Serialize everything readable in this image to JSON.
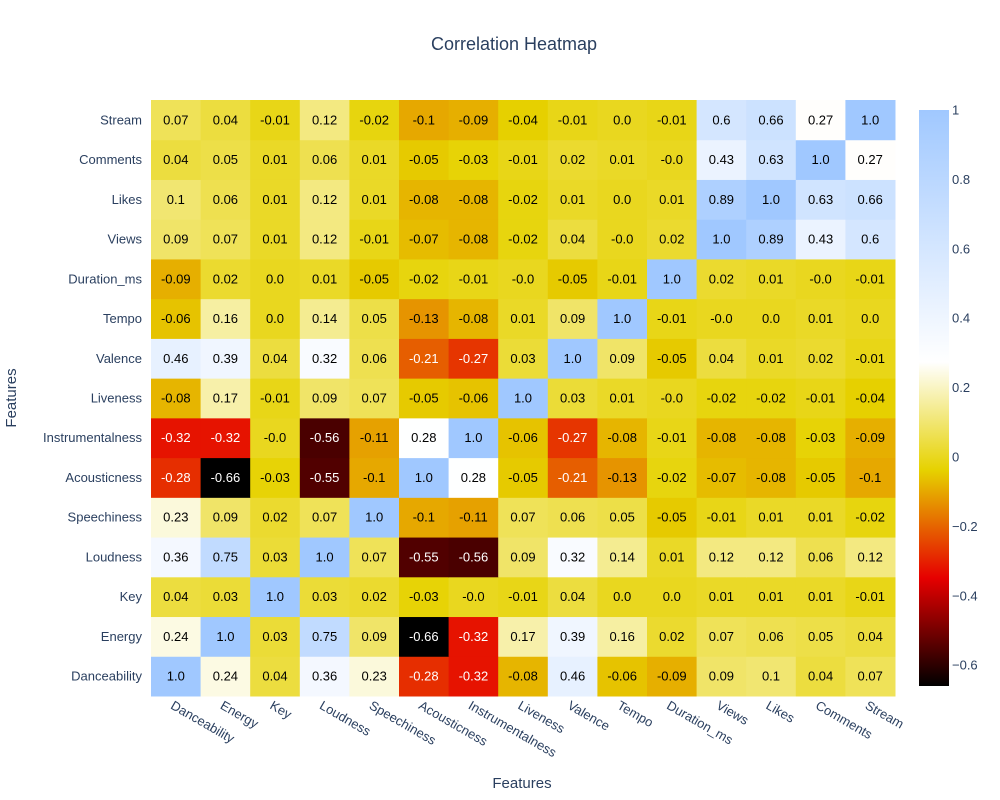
{
  "chart_data": {
    "type": "heatmap",
    "title": "Correlation Heatmap",
    "xlabel": "Features",
    "ylabel": "Features",
    "x_categories": [
      "Danceability",
      "Energy",
      "Key",
      "Loudness",
      "Speechiness",
      "Acousticness",
      "Instrumentalness",
      "Liveness",
      "Valence",
      "Tempo",
      "Duration_ms",
      "Views",
      "Likes",
      "Comments",
      "Stream"
    ],
    "y_categories": [
      "Danceability",
      "Energy",
      "Key",
      "Loudness",
      "Speechiness",
      "Acousticness",
      "Instrumentalness",
      "Liveness",
      "Valence",
      "Tempo",
      "Duration_ms",
      "Views",
      "Likes",
      "Comments",
      "Stream"
    ],
    "z_labels": [
      [
        "1.0",
        "0.24",
        "0.04",
        "0.36",
        "0.23",
        "-0.28",
        "-0.32",
        "-0.08",
        "0.46",
        "-0.06",
        "-0.09",
        "0.09",
        "0.1",
        "0.04",
        "0.07"
      ],
      [
        "0.24",
        "1.0",
        "0.03",
        "0.75",
        "0.09",
        "-0.66",
        "-0.32",
        "0.17",
        "0.39",
        "0.16",
        "0.02",
        "0.07",
        "0.06",
        "0.05",
        "0.04"
      ],
      [
        "0.04",
        "0.03",
        "1.0",
        "0.03",
        "0.02",
        "-0.03",
        "-0.0",
        "-0.01",
        "0.04",
        "0.0",
        "0.0",
        "0.01",
        "0.01",
        "0.01",
        "-0.01"
      ],
      [
        "0.36",
        "0.75",
        "0.03",
        "1.0",
        "0.07",
        "-0.55",
        "-0.56",
        "0.09",
        "0.32",
        "0.14",
        "0.01",
        "0.12",
        "0.12",
        "0.06",
        "0.12"
      ],
      [
        "0.23",
        "0.09",
        "0.02",
        "0.07",
        "1.0",
        "-0.1",
        "-0.11",
        "0.07",
        "0.06",
        "0.05",
        "-0.05",
        "-0.01",
        "0.01",
        "0.01",
        "-0.02"
      ],
      [
        "-0.28",
        "-0.66",
        "-0.03",
        "-0.55",
        "-0.1",
        "1.0",
        "0.28",
        "-0.05",
        "-0.21",
        "-0.13",
        "-0.02",
        "-0.07",
        "-0.08",
        "-0.05",
        "-0.1"
      ],
      [
        "-0.32",
        "-0.32",
        "-0.0",
        "-0.56",
        "-0.11",
        "0.28",
        "1.0",
        "-0.06",
        "-0.27",
        "-0.08",
        "-0.01",
        "-0.08",
        "-0.08",
        "-0.03",
        "-0.09"
      ],
      [
        "-0.08",
        "0.17",
        "-0.01",
        "0.09",
        "0.07",
        "-0.05",
        "-0.06",
        "1.0",
        "0.03",
        "0.01",
        "-0.0",
        "-0.02",
        "-0.02",
        "-0.01",
        "-0.04"
      ],
      [
        "0.46",
        "0.39",
        "0.04",
        "0.32",
        "0.06",
        "-0.21",
        "-0.27",
        "0.03",
        "1.0",
        "0.09",
        "-0.05",
        "0.04",
        "0.01",
        "0.02",
        "-0.01"
      ],
      [
        "-0.06",
        "0.16",
        "0.0",
        "0.14",
        "0.05",
        "-0.13",
        "-0.08",
        "0.01",
        "0.09",
        "1.0",
        "-0.01",
        "-0.0",
        "0.0",
        "0.01",
        "0.0"
      ],
      [
        "-0.09",
        "0.02",
        "0.0",
        "0.01",
        "-0.05",
        "-0.02",
        "-0.01",
        "-0.0",
        "-0.05",
        "-0.01",
        "1.0",
        "0.02",
        "0.01",
        "-0.0",
        "-0.01"
      ],
      [
        "0.09",
        "0.07",
        "0.01",
        "0.12",
        "-0.01",
        "-0.07",
        "-0.08",
        "-0.02",
        "0.04",
        "-0.0",
        "0.02",
        "1.0",
        "0.89",
        "0.43",
        "0.6"
      ],
      [
        "0.1",
        "0.06",
        "0.01",
        "0.12",
        "0.01",
        "-0.08",
        "-0.08",
        "-0.02",
        "0.01",
        "0.0",
        "0.01",
        "0.89",
        "1.0",
        "0.63",
        "0.66"
      ],
      [
        "0.04",
        "0.05",
        "0.01",
        "0.06",
        "0.01",
        "-0.05",
        "-0.03",
        "-0.01",
        "0.02",
        "0.01",
        "-0.0",
        "0.43",
        "0.63",
        "1.0",
        "0.27"
      ],
      [
        "0.07",
        "0.04",
        "-0.01",
        "0.12",
        "-0.02",
        "-0.1",
        "-0.09",
        "-0.04",
        "-0.01",
        "0.0",
        "-0.01",
        "0.6",
        "0.66",
        "0.27",
        "1.0"
      ]
    ],
    "zmin": -0.66,
    "zmax": 1.0,
    "colorscale": [
      [
        0.0,
        "#000000"
      ],
      [
        0.1875,
        "#e60000"
      ],
      [
        0.375,
        "#e6d200"
      ],
      [
        0.5625,
        "#ffffff"
      ],
      [
        1.0,
        "#a0c8ff"
      ]
    ],
    "colorbar_ticks": [
      1,
      0.8,
      0.6,
      0.4,
      0.2,
      0,
      -0.2,
      -0.4,
      -0.6
    ],
    "colorbar_tick_labels": [
      "1",
      "0.8",
      "0.6",
      "0.4",
      "0.2",
      "0",
      "−0.2",
      "−0.4",
      "−0.6"
    ],
    "grid": false,
    "colorbar_position": "right"
  }
}
